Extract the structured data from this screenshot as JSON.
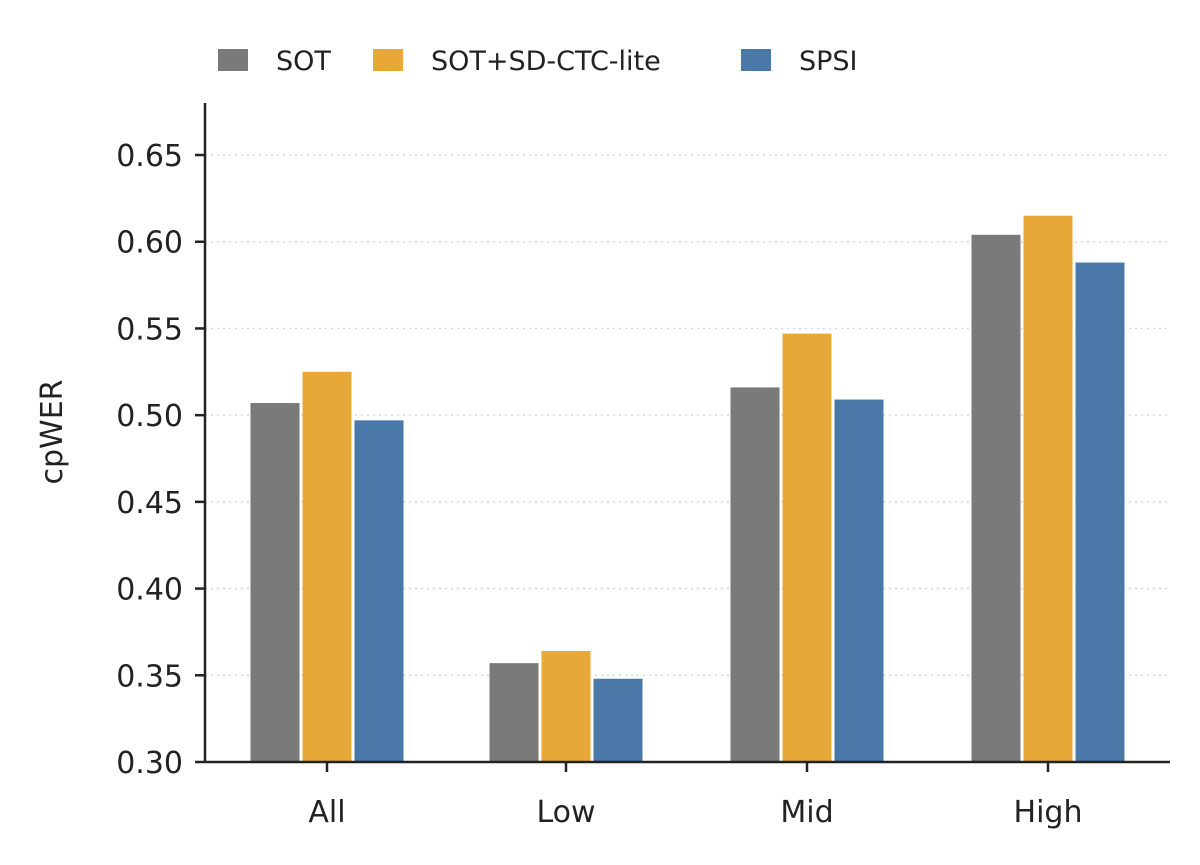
{
  "chart_data": {
    "type": "bar",
    "categories": [
      "All",
      "Low",
      "Mid",
      "High"
    ],
    "series": [
      {
        "name": "SOT",
        "values": [
          0.507,
          0.357,
          0.516,
          0.604
        ],
        "color": "#7a7a7a"
      },
      {
        "name": "SOT+SD-CTC-lite",
        "values": [
          0.525,
          0.364,
          0.547,
          0.615
        ],
        "color": "#e8a838"
      },
      {
        "name": "SPSI",
        "values": [
          0.497,
          0.348,
          0.509,
          0.588
        ],
        "color": "#4a78a8"
      }
    ],
    "title": "",
    "xlabel": "",
    "ylabel": "cpWER",
    "ylim": [
      0.3,
      0.68
    ],
    "yticks": [
      "0.30",
      "0.35",
      "0.40",
      "0.45",
      "0.50",
      "0.55",
      "0.60",
      "0.65"
    ],
    "grid": "horizontal dotted",
    "legend": "top"
  }
}
